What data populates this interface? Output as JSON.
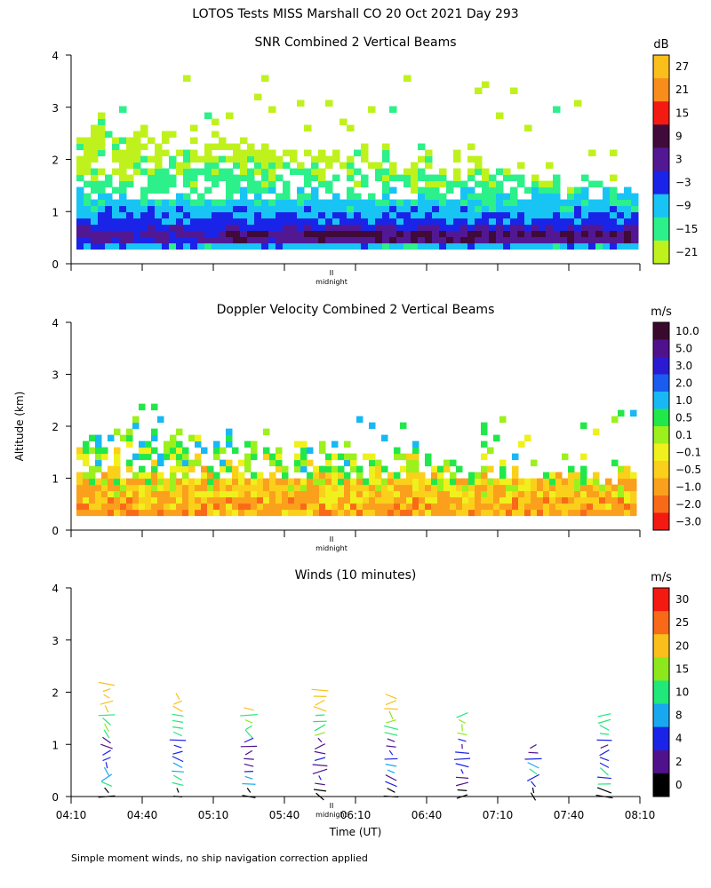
{
  "figure": {
    "title": "LOTOS Tests MISS Marshall CO  20 Oct 2021 Day 293",
    "y_axis_label": "Altitude (km)",
    "x_axis_label": "Time (UT)",
    "footnote": "Simple moment winds, no ship navigation correction applied",
    "midnight_label": "midnight",
    "midnight_mark": "II",
    "time_tick_labels": [
      "04:10",
      "04:40",
      "05:10",
      "05:40",
      "06:10",
      "06:40",
      "07:10",
      "07:40",
      "08:10"
    ]
  },
  "chart_data": [
    {
      "type": "heatmap",
      "title": "SNR Combined 2 Vertical Beams",
      "colorbar_unit": "dB",
      "colorbar_labels": [
        "27",
        "21",
        "15",
        "9",
        "3",
        "−3",
        "−9",
        "−15",
        "−21"
      ],
      "colorbar_colors": [
        "#fbbf1b",
        "#f98d1c",
        "#f41a12",
        "#400a3a",
        "#521894",
        "#1a23e8",
        "#18c4f4",
        "#2cf08a",
        "#bff21c"
      ],
      "xlabel": "",
      "ylabel": "Altitude (km)",
      "y_tick_labels": [
        "0",
        "1",
        "2",
        "3",
        "4"
      ],
      "ylim": [
        0,
        4
      ],
      "x_range": [
        "04:10",
        "08:10"
      ],
      "profile_by_altitude_km": [
        {
          "alt": 0.3,
          "snr_db": -9
        },
        {
          "alt": 0.45,
          "snr_db": 6
        },
        {
          "alt": 0.7,
          "snr_db": -3
        },
        {
          "alt": 1.0,
          "snr_db": -9
        },
        {
          "alt": 1.4,
          "snr_db": -15
        },
        {
          "alt": 2.0,
          "snr_db": -21
        },
        {
          "alt": 2.8,
          "snr_db": -21
        }
      ]
    },
    {
      "type": "heatmap",
      "title": "Doppler Velocity Combined 2 Vertical Beams",
      "colorbar_unit": "m/s",
      "colorbar_labels": [
        "10.0",
        "5.0",
        "3.0",
        "2.0",
        "1.0",
        "0.5",
        "0.1",
        "−0.1",
        "−0.5",
        "−1.0",
        "−2.0",
        "−3.0"
      ],
      "colorbar_colors": [
        "#3a0a2e",
        "#50128c",
        "#2a1ad4",
        "#1a5cf0",
        "#18b8f4",
        "#20e84a",
        "#9cf01c",
        "#f0f01c",
        "#fbd01a",
        "#fba01c",
        "#f86a18",
        "#f41a12"
      ],
      "xlabel": "",
      "ylabel": "Altitude (km)",
      "y_tick_labels": [
        "0",
        "1",
        "2",
        "3",
        "4"
      ],
      "ylim": [
        0,
        4
      ],
      "x_range": [
        "04:10",
        "08:10"
      ],
      "profile_by_altitude_km": [
        {
          "alt": 0.4,
          "velocity_ms": -1.0
        },
        {
          "alt": 0.8,
          "velocity_ms": -0.5
        },
        {
          "alt": 1.2,
          "velocity_ms": 0.1
        },
        {
          "alt": 1.8,
          "velocity_ms": 0.5
        },
        {
          "alt": 2.2,
          "velocity_ms": 1.0
        }
      ]
    },
    {
      "type": "scatter",
      "title": "Winds (10 minutes)",
      "colorbar_unit": "m/s",
      "colorbar_labels": [
        "30",
        "25",
        "20",
        "15",
        "10",
        "8",
        "4",
        "2",
        "0"
      ],
      "colorbar_colors": [
        "#f41a12",
        "#f86a18",
        "#fbbf1b",
        "#8ce81c",
        "#20e87a",
        "#18a8f0",
        "#1a23e8",
        "#50128c",
        "#000000"
      ],
      "xlabel": "Time (UT)",
      "ylabel": "Altitude (km)",
      "y_tick_labels": [
        "0",
        "1",
        "2",
        "3",
        "4"
      ],
      "ylim": [
        0,
        4
      ],
      "x_range": [
        "04:10",
        "08:10"
      ],
      "profile_times": [
        "04:25",
        "04:55",
        "05:25",
        "05:55",
        "06:25",
        "06:55",
        "07:25",
        "07:55"
      ],
      "profile_tops_km": [
        2.2,
        2.0,
        1.8,
        2.1,
        2.0,
        1.6,
        1.0,
        1.6
      ]
    }
  ]
}
